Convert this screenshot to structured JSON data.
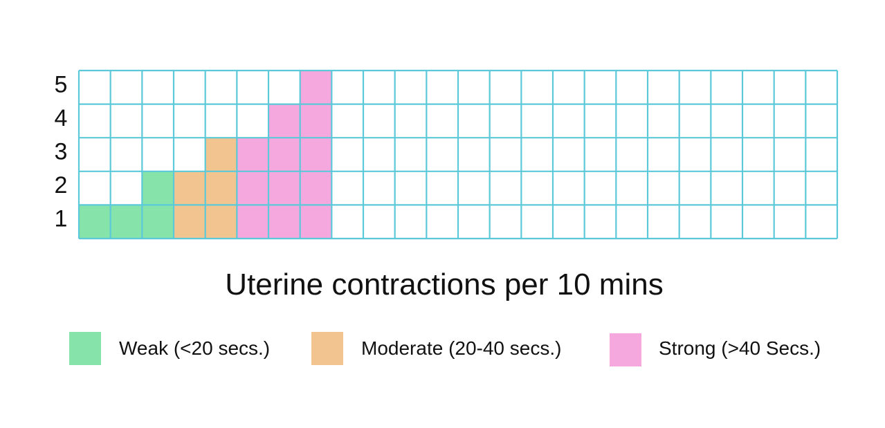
{
  "chart_data": {
    "type": "heatmap",
    "title": "",
    "xlabel": "Uterine contractions per 10 mins",
    "ylabel": "",
    "grid": true,
    "grid_color": "#5bc9d9",
    "columns": 24,
    "rows": 5,
    "y_ticks": [
      "1",
      "2",
      "3",
      "4",
      "5"
    ],
    "legend_position": "bottom",
    "series": [
      {
        "key": "weak",
        "name": "Weak (<20 secs.)",
        "color": "#86e3aa"
      },
      {
        "key": "moderate",
        "name": "Moderate (20-40 secs.)",
        "color": "#f2c48f"
      },
      {
        "key": "strong",
        "name": "Strong (>40 Secs.)",
        "color": "#f4a8dd"
      }
    ],
    "column_values": [
      {
        "column": 1,
        "count": 1,
        "strength": "weak"
      },
      {
        "column": 2,
        "count": 1,
        "strength": "weak"
      },
      {
        "column": 3,
        "count": 2,
        "strength": "weak"
      },
      {
        "column": 4,
        "count": 2,
        "strength": "moderate"
      },
      {
        "column": 5,
        "count": 3,
        "strength": "moderate"
      },
      {
        "column": 6,
        "count": 3,
        "strength": "strong"
      },
      {
        "column": 7,
        "count": 4,
        "strength": "strong"
      },
      {
        "column": 8,
        "count": 5,
        "strength": "strong"
      }
    ]
  }
}
